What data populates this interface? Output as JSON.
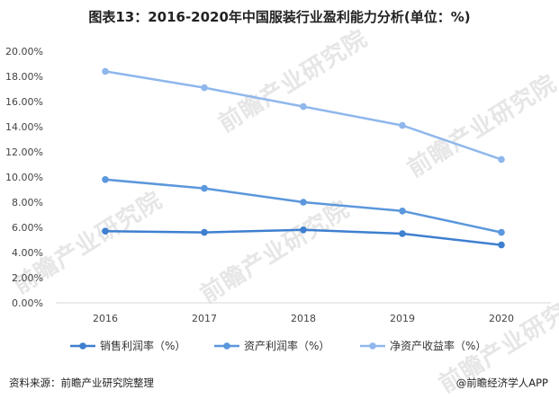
{
  "chart_data": {
    "type": "line",
    "title": "图表13：2016-2020年中国服装行业盈利能力分析(单位：%)",
    "categories": [
      "2016",
      "2017",
      "2018",
      "2019",
      "2020"
    ],
    "series": [
      {
        "name": "销售利润率（%）",
        "color": "#3e7fd0",
        "values": [
          5.7,
          5.6,
          5.8,
          5.5,
          4.6
        ]
      },
      {
        "name": "资产利润率（%）",
        "color": "#5b97dc",
        "values": [
          9.8,
          9.1,
          8.0,
          7.3,
          5.6
        ]
      },
      {
        "name": "净资产收益率（%）",
        "color": "#8fb7ec",
        "values": [
          18.4,
          17.1,
          15.6,
          14.1,
          11.4
        ]
      }
    ],
    "yticks": [
      "20.00%",
      "18.00%",
      "16.00%",
      "14.00%",
      "12.00%",
      "10.00%",
      "8.00%",
      "6.00%",
      "4.00%",
      "2.00%",
      "0.00%"
    ],
    "ylim": [
      0,
      20
    ],
    "grid": false,
    "legend_position": "bottom"
  },
  "watermark": "前瞻产业研究院",
  "footer": {
    "source": "资料来源：前瞻产业研究院整理",
    "brand": "@前瞻经济学人APP"
  }
}
